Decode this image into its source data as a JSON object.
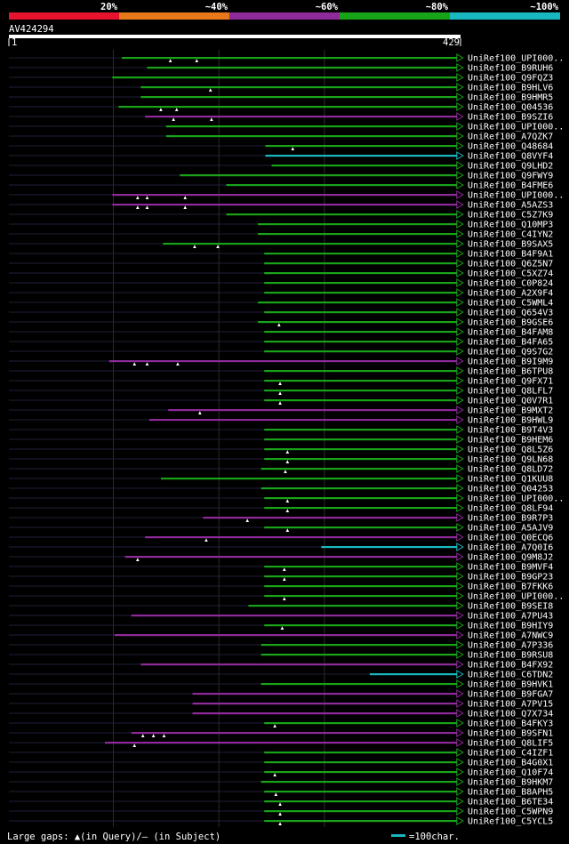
{
  "colors": {
    "background": "#000000",
    "bin1": "#e8132d",
    "bin2": "#e8791a",
    "bin3": "#8f2a9b",
    "bin4": "#19a319",
    "bin5": "#19b8c0",
    "query_bar": "#ffffff",
    "guide": "#20203a",
    "grid": "#2a2a2a"
  },
  "chart_data": {
    "type": "alignment-overview",
    "title": "AV424294",
    "query_length": 429,
    "ruler": {
      "start_label": "1",
      "end_label": "429"
    },
    "legend_bins": [
      {
        "label": "20%",
        "color": "#e8132d"
      },
      {
        "label": "~40%",
        "color": "#e8791a"
      },
      {
        "label": "~60%",
        "color": "#8f2a9b"
      },
      {
        "label": "~80%",
        "color": "#19a319"
      },
      {
        "label": "~100%",
        "color": "#19b8c0"
      }
    ],
    "footer": {
      "gaps_text": "Large gaps: ▲(in Query)/– (in Subject)",
      "scale_text": "=100char."
    },
    "hits": [
      {
        "label": "UniRef100_UPI000..",
        "start": 108,
        "end": 428,
        "identity_bin": 4,
        "query_gaps": [
          154,
          179
        ]
      },
      {
        "label": "UniRef100_B9RUH6",
        "start": 132,
        "end": 428,
        "identity_bin": 4,
        "query_gaps": []
      },
      {
        "label": "UniRef100_Q9FQZ3",
        "start": 99,
        "end": 428,
        "identity_bin": 4,
        "query_gaps": []
      },
      {
        "label": "UniRef100_B9HLV6",
        "start": 126,
        "end": 428,
        "identity_bin": 4,
        "query_gaps": [
          192
        ]
      },
      {
        "label": "UniRef100_B9HMR5",
        "start": 126,
        "end": 428,
        "identity_bin": 4,
        "query_gaps": []
      },
      {
        "label": "UniRef100_Q04536",
        "start": 105,
        "end": 428,
        "identity_bin": 4,
        "query_gaps": [
          145,
          160
        ]
      },
      {
        "label": "UniRef100_B9SZI6",
        "start": 130,
        "end": 428,
        "identity_bin": 3,
        "query_gaps": [
          157,
          193
        ]
      },
      {
        "label": "UniRef100_UPI000..",
        "start": 150,
        "end": 428,
        "identity_bin": 4,
        "query_gaps": []
      },
      {
        "label": "UniRef100_A7QZK7",
        "start": 150,
        "end": 428,
        "identity_bin": 4,
        "query_gaps": []
      },
      {
        "label": "UniRef100_Q48684",
        "start": 244,
        "end": 428,
        "identity_bin": 4,
        "query_gaps": [
          270
        ]
      },
      {
        "label": "UniRef100_Q8VYF4",
        "start": 244,
        "end": 428,
        "identity_bin": 5,
        "query_gaps": []
      },
      {
        "label": "UniRef100_Q9LHD2",
        "start": 250,
        "end": 428,
        "identity_bin": 4,
        "query_gaps": []
      },
      {
        "label": "UniRef100_Q9FWY9",
        "start": 163,
        "end": 428,
        "identity_bin": 4,
        "query_gaps": []
      },
      {
        "label": "UniRef100_B4FME6",
        "start": 207,
        "end": 428,
        "identity_bin": 4,
        "query_gaps": []
      },
      {
        "label": "UniRef100_UPI000..",
        "start": 99,
        "end": 428,
        "identity_bin": 3,
        "query_gaps": [
          123,
          132,
          168
        ]
      },
      {
        "label": "UniRef100_A5AZS3",
        "start": 99,
        "end": 428,
        "identity_bin": 3,
        "query_gaps": [
          123,
          132,
          168
        ]
      },
      {
        "label": "UniRef100_C5Z7K9",
        "start": 207,
        "end": 428,
        "identity_bin": 4,
        "query_gaps": []
      },
      {
        "label": "UniRef100_Q10MP3",
        "start": 237,
        "end": 428,
        "identity_bin": 4,
        "query_gaps": []
      },
      {
        "label": "UniRef100_C4IYN2",
        "start": 237,
        "end": 428,
        "identity_bin": 4,
        "query_gaps": []
      },
      {
        "label": "UniRef100_B9SAX5",
        "start": 147,
        "end": 428,
        "identity_bin": 4,
        "query_gaps": [
          177,
          199
        ]
      },
      {
        "label": "UniRef100_B4F9A1",
        "start": 243,
        "end": 428,
        "identity_bin": 4,
        "query_gaps": []
      },
      {
        "label": "UniRef100_Q6Z5N7",
        "start": 243,
        "end": 428,
        "identity_bin": 4,
        "query_gaps": []
      },
      {
        "label": "UniRef100_C5XZ74",
        "start": 243,
        "end": 428,
        "identity_bin": 4,
        "query_gaps": []
      },
      {
        "label": "UniRef100_C0P824",
        "start": 243,
        "end": 428,
        "identity_bin": 4,
        "query_gaps": []
      },
      {
        "label": "UniRef100_A2X9F4",
        "start": 243,
        "end": 428,
        "identity_bin": 4,
        "query_gaps": []
      },
      {
        "label": "UniRef100_C5WML4",
        "start": 237,
        "end": 428,
        "identity_bin": 4,
        "query_gaps": []
      },
      {
        "label": "UniRef100_Q654V3",
        "start": 243,
        "end": 428,
        "identity_bin": 4,
        "query_gaps": []
      },
      {
        "label": "UniRef100_B9GSE6",
        "start": 237,
        "end": 428,
        "identity_bin": 4,
        "query_gaps": [
          257
        ]
      },
      {
        "label": "UniRef100_B4FAM8",
        "start": 243,
        "end": 428,
        "identity_bin": 4,
        "query_gaps": []
      },
      {
        "label": "UniRef100_B4FA65",
        "start": 243,
        "end": 428,
        "identity_bin": 4,
        "query_gaps": []
      },
      {
        "label": "UniRef100_Q9S7G2",
        "start": 243,
        "end": 428,
        "identity_bin": 4,
        "query_gaps": []
      },
      {
        "label": "UniRef100_B9I9M9",
        "start": 96,
        "end": 428,
        "identity_bin": 3,
        "query_gaps": [
          120,
          132,
          161
        ]
      },
      {
        "label": "UniRef100_B6TPU8",
        "start": 243,
        "end": 428,
        "identity_bin": 4,
        "query_gaps": []
      },
      {
        "label": "UniRef100_Q9FX71",
        "start": 243,
        "end": 428,
        "identity_bin": 4,
        "query_gaps": [
          258
        ]
      },
      {
        "label": "UniRef100_Q8LFL7",
        "start": 243,
        "end": 428,
        "identity_bin": 4,
        "query_gaps": [
          258
        ]
      },
      {
        "label": "UniRef100_Q0V7R1",
        "start": 243,
        "end": 428,
        "identity_bin": 4,
        "query_gaps": [
          258
        ]
      },
      {
        "label": "UniRef100_B9MXT2",
        "start": 152,
        "end": 428,
        "identity_bin": 3,
        "query_gaps": [
          182
        ]
      },
      {
        "label": "UniRef100_B9HWL9",
        "start": 134,
        "end": 428,
        "identity_bin": 3,
        "query_gaps": []
      },
      {
        "label": "UniRef100_B9T4V3",
        "start": 243,
        "end": 428,
        "identity_bin": 4,
        "query_gaps": []
      },
      {
        "label": "UniRef100_B9HEM6",
        "start": 243,
        "end": 428,
        "identity_bin": 4,
        "query_gaps": []
      },
      {
        "label": "UniRef100_Q8L5Z6",
        "start": 243,
        "end": 428,
        "identity_bin": 4,
        "query_gaps": [
          265
        ]
      },
      {
        "label": "UniRef100_Q9LN68",
        "start": 243,
        "end": 428,
        "identity_bin": 4,
        "query_gaps": [
          265
        ]
      },
      {
        "label": "UniRef100_Q8LD72",
        "start": 240,
        "end": 428,
        "identity_bin": 4,
        "query_gaps": [
          263
        ]
      },
      {
        "label": "UniRef100_Q1KUU8",
        "start": 145,
        "end": 428,
        "identity_bin": 4,
        "query_gaps": []
      },
      {
        "label": "UniRef100_Q04253",
        "start": 240,
        "end": 428,
        "identity_bin": 4,
        "query_gaps": []
      },
      {
        "label": "UniRef100_UPI000..",
        "start": 243,
        "end": 428,
        "identity_bin": 4,
        "query_gaps": [
          265
        ]
      },
      {
        "label": "UniRef100_Q8LF94",
        "start": 243,
        "end": 428,
        "identity_bin": 4,
        "query_gaps": [
          265
        ]
      },
      {
        "label": "UniRef100_B9R7P3",
        "start": 185,
        "end": 428,
        "identity_bin": 3,
        "query_gaps": [
          227
        ]
      },
      {
        "label": "UniRef100_A5AJV9",
        "start": 243,
        "end": 428,
        "identity_bin": 4,
        "query_gaps": [
          265
        ]
      },
      {
        "label": "UniRef100_Q0ECQ6",
        "start": 130,
        "end": 428,
        "identity_bin": 3,
        "query_gaps": [
          188
        ]
      },
      {
        "label": "UniRef100_A7Q0I6",
        "start": 297,
        "end": 428,
        "identity_bin": 5,
        "query_gaps": []
      },
      {
        "label": "UniRef100_Q9M8J2",
        "start": 111,
        "end": 428,
        "identity_bin": 3,
        "query_gaps": [
          123
        ]
      },
      {
        "label": "UniRef100_B9MVF4",
        "start": 243,
        "end": 428,
        "identity_bin": 4,
        "query_gaps": [
          262
        ]
      },
      {
        "label": "UniRef100_B9GP23",
        "start": 243,
        "end": 428,
        "identity_bin": 4,
        "query_gaps": [
          262
        ]
      },
      {
        "label": "UniRef100_B7FKK6",
        "start": 243,
        "end": 428,
        "identity_bin": 4,
        "query_gaps": []
      },
      {
        "label": "UniRef100_UPI000..",
        "start": 243,
        "end": 428,
        "identity_bin": 4,
        "query_gaps": [
          262
        ]
      },
      {
        "label": "UniRef100_B9SEI8",
        "start": 228,
        "end": 428,
        "identity_bin": 4,
        "query_gaps": []
      },
      {
        "label": "UniRef100_A7PU43",
        "start": 117,
        "end": 428,
        "identity_bin": 3,
        "query_gaps": []
      },
      {
        "label": "UniRef100_B9HIY9",
        "start": 243,
        "end": 428,
        "identity_bin": 4,
        "query_gaps": [
          260
        ]
      },
      {
        "label": "UniRef100_A7NWC9",
        "start": 101,
        "end": 428,
        "identity_bin": 3,
        "query_gaps": []
      },
      {
        "label": "UniRef100_A7P336",
        "start": 240,
        "end": 428,
        "identity_bin": 4,
        "query_gaps": []
      },
      {
        "label": "UniRef100_B9RSU8",
        "start": 240,
        "end": 428,
        "identity_bin": 4,
        "query_gaps": []
      },
      {
        "label": "UniRef100_B4FX92",
        "start": 126,
        "end": 428,
        "identity_bin": 3,
        "query_gaps": []
      },
      {
        "label": "UniRef100_C6TDN2",
        "start": 343,
        "end": 428,
        "identity_bin": 5,
        "query_gaps": []
      },
      {
        "label": "UniRef100_B9HVK1",
        "start": 240,
        "end": 428,
        "identity_bin": 4,
        "query_gaps": []
      },
      {
        "label": "UniRef100_B9FGA7",
        "start": 175,
        "end": 428,
        "identity_bin": 3,
        "query_gaps": []
      },
      {
        "label": "UniRef100_A7PV15",
        "start": 175,
        "end": 428,
        "identity_bin": 3,
        "query_gaps": []
      },
      {
        "label": "UniRef100_Q7X734",
        "start": 175,
        "end": 428,
        "identity_bin": 3,
        "query_gaps": []
      },
      {
        "label": "UniRef100_B4FKY3",
        "start": 243,
        "end": 428,
        "identity_bin": 4,
        "query_gaps": [
          253
        ]
      },
      {
        "label": "UniRef100_B9SFN1",
        "start": 117,
        "end": 428,
        "identity_bin": 3,
        "query_gaps": [
          128,
          138,
          148
        ]
      },
      {
        "label": "UniRef100_Q8LIF5",
        "start": 92,
        "end": 428,
        "identity_bin": 3,
        "query_gaps": [
          120
        ]
      },
      {
        "label": "UniRef100_C4IZF1",
        "start": 243,
        "end": 428,
        "identity_bin": 4,
        "query_gaps": []
      },
      {
        "label": "UniRef100_B4G0X1",
        "start": 243,
        "end": 428,
        "identity_bin": 4,
        "query_gaps": []
      },
      {
        "label": "UniRef100_Q10F74",
        "start": 243,
        "end": 428,
        "identity_bin": 4,
        "query_gaps": [
          253
        ]
      },
      {
        "label": "UniRef100_B9HKM7",
        "start": 240,
        "end": 428,
        "identity_bin": 4,
        "query_gaps": []
      },
      {
        "label": "UniRef100_B8APH5",
        "start": 243,
        "end": 428,
        "identity_bin": 4,
        "query_gaps": [
          254
        ]
      },
      {
        "label": "UniRef100_B6TE34",
        "start": 243,
        "end": 428,
        "identity_bin": 4,
        "query_gaps": [
          258
        ]
      },
      {
        "label": "UniRef100_C5WPN9",
        "start": 243,
        "end": 428,
        "identity_bin": 4,
        "query_gaps": [
          258
        ]
      },
      {
        "label": "UniRef100_C5YCL5",
        "start": 243,
        "end": 428,
        "identity_bin": 4,
        "query_gaps": [
          258
        ]
      }
    ]
  }
}
